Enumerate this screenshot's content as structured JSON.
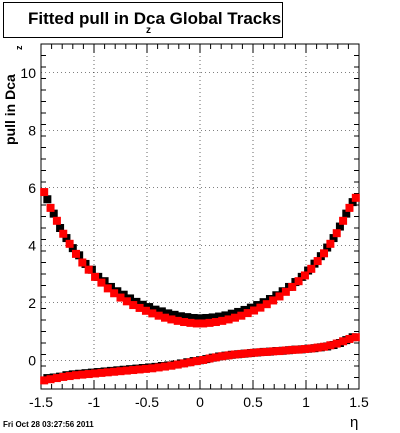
{
  "chart_data": {
    "type": "scatter",
    "title": "Fitted pull in Dca",
    "title_subscript": "z",
    "title_suffix": " Global Tracks",
    "ylabel": "pull in Dca",
    "ylabel_subscript": "z",
    "xlabel": "η",
    "xlim": [
      -1.5,
      1.5
    ],
    "ylim": [
      -1.0,
      11.0
    ],
    "x_ticks": [
      "-1.5",
      "-1",
      "-0.5",
      "0",
      "0.5",
      "1",
      "1.5"
    ],
    "y_ticks": [
      "0",
      "2",
      "4",
      "6",
      "8",
      "10"
    ],
    "grid": true,
    "legend": "none",
    "series": [
      {
        "color": "#000000",
        "x": [
          -1.44,
          -1.38,
          -1.32,
          -1.26,
          -1.2,
          -1.14,
          -1.08,
          -1.02,
          -0.96,
          -0.9,
          -0.84,
          -0.78,
          -0.72,
          -0.66,
          -0.6,
          -0.54,
          -0.48,
          -0.42,
          -0.36,
          -0.3,
          -0.24,
          -0.18,
          -0.12,
          -0.06,
          0.0,
          0.06,
          0.12,
          0.18,
          0.24,
          0.3,
          0.36,
          0.42,
          0.48,
          0.54,
          0.6,
          0.66,
          0.72,
          0.78,
          0.84,
          0.9,
          0.96,
          1.02,
          1.08,
          1.14,
          1.2,
          1.26,
          1.32,
          1.38,
          1.44
        ],
        "y": [
          5.6,
          5.1,
          4.6,
          4.25,
          3.9,
          3.65,
          3.35,
          3.15,
          2.9,
          2.75,
          2.55,
          2.4,
          2.28,
          2.15,
          2.03,
          1.93,
          1.85,
          1.76,
          1.7,
          1.63,
          1.58,
          1.53,
          1.5,
          1.47,
          1.46,
          1.47,
          1.49,
          1.52,
          1.56,
          1.62,
          1.68,
          1.75,
          1.83,
          1.92,
          2.02,
          2.13,
          2.26,
          2.4,
          2.55,
          2.72,
          2.9,
          3.12,
          3.36,
          3.62,
          3.92,
          4.25,
          4.65,
          5.1,
          5.5
        ]
      },
      {
        "color": "#ff0000",
        "x": [
          -1.47,
          -1.41,
          -1.35,
          -1.29,
          -1.23,
          -1.17,
          -1.11,
          -1.05,
          -0.99,
          -0.93,
          -0.87,
          -0.81,
          -0.75,
          -0.69,
          -0.63,
          -0.57,
          -0.51,
          -0.45,
          -0.39,
          -0.33,
          -0.27,
          -0.21,
          -0.15,
          -0.09,
          -0.03,
          0.03,
          0.09,
          0.15,
          0.21,
          0.27,
          0.33,
          0.39,
          0.45,
          0.51,
          0.57,
          0.63,
          0.69,
          0.75,
          0.81,
          0.87,
          0.93,
          0.99,
          1.05,
          1.11,
          1.17,
          1.23,
          1.29,
          1.35,
          1.41,
          1.47
        ],
        "y": [
          5.85,
          5.3,
          4.85,
          4.4,
          4.05,
          3.7,
          3.4,
          3.15,
          2.9,
          2.7,
          2.5,
          2.33,
          2.18,
          2.05,
          1.92,
          1.82,
          1.72,
          1.63,
          1.55,
          1.48,
          1.42,
          1.37,
          1.33,
          1.3,
          1.28,
          1.28,
          1.3,
          1.33,
          1.37,
          1.42,
          1.48,
          1.55,
          1.64,
          1.73,
          1.83,
          1.95,
          2.08,
          2.22,
          2.38,
          2.55,
          2.75,
          2.95,
          3.18,
          3.45,
          3.72,
          4.05,
          4.42,
          4.85,
          5.3,
          5.65
        ]
      },
      {
        "color": "#000000",
        "x": [
          -1.44,
          -1.38,
          -1.32,
          -1.26,
          -1.2,
          -1.14,
          -1.08,
          -1.02,
          -0.96,
          -0.9,
          -0.84,
          -0.78,
          -0.72,
          -0.66,
          -0.6,
          -0.54,
          -0.48,
          -0.42,
          -0.36,
          -0.3,
          -0.24,
          -0.18,
          -0.12,
          -0.06,
          0.0,
          0.06,
          0.12,
          0.18,
          0.24,
          0.3,
          0.36,
          0.42,
          0.48,
          0.54,
          0.6,
          0.66,
          0.72,
          0.78,
          0.84,
          0.9,
          0.96,
          1.02,
          1.08,
          1.14,
          1.2,
          1.26,
          1.32,
          1.38,
          1.44
        ],
        "y": [
          -0.62,
          -0.6,
          -0.57,
          -0.52,
          -0.49,
          -0.47,
          -0.45,
          -0.43,
          -0.41,
          -0.39,
          -0.37,
          -0.35,
          -0.33,
          -0.31,
          -0.29,
          -0.27,
          -0.25,
          -0.23,
          -0.2,
          -0.18,
          -0.15,
          -0.11,
          -0.07,
          -0.03,
          0.0,
          0.04,
          0.09,
          0.13,
          0.16,
          0.19,
          0.21,
          0.23,
          0.25,
          0.27,
          0.29,
          0.3,
          0.32,
          0.33,
          0.35,
          0.37,
          0.38,
          0.4,
          0.42,
          0.45,
          0.48,
          0.53,
          0.6,
          0.7,
          0.8
        ]
      },
      {
        "color": "#ff0000",
        "x": [
          -1.47,
          -1.41,
          -1.35,
          -1.29,
          -1.23,
          -1.17,
          -1.11,
          -1.05,
          -0.99,
          -0.93,
          -0.87,
          -0.81,
          -0.75,
          -0.69,
          -0.63,
          -0.57,
          -0.51,
          -0.45,
          -0.39,
          -0.33,
          -0.27,
          -0.21,
          -0.15,
          -0.09,
          -0.03,
          0.03,
          0.09,
          0.15,
          0.21,
          0.27,
          0.33,
          0.39,
          0.45,
          0.51,
          0.57,
          0.63,
          0.69,
          0.75,
          0.81,
          0.87,
          0.93,
          0.99,
          1.05,
          1.11,
          1.17,
          1.23,
          1.29,
          1.35,
          1.41,
          1.47
        ],
        "y": [
          -0.7,
          -0.66,
          -0.62,
          -0.58,
          -0.55,
          -0.52,
          -0.5,
          -0.48,
          -0.46,
          -0.44,
          -0.42,
          -0.4,
          -0.38,
          -0.36,
          -0.34,
          -0.32,
          -0.3,
          -0.28,
          -0.25,
          -0.22,
          -0.19,
          -0.15,
          -0.11,
          -0.07,
          -0.03,
          0.01,
          0.06,
          0.1,
          0.14,
          0.17,
          0.2,
          0.22,
          0.24,
          0.26,
          0.28,
          0.29,
          0.31,
          0.32,
          0.34,
          0.36,
          0.37,
          0.39,
          0.41,
          0.44,
          0.47,
          0.52,
          0.58,
          0.66,
          0.74,
          0.8
        ]
      }
    ]
  },
  "footer": {
    "timestamp": "Fri Oct 28 03:27:56 2011"
  }
}
